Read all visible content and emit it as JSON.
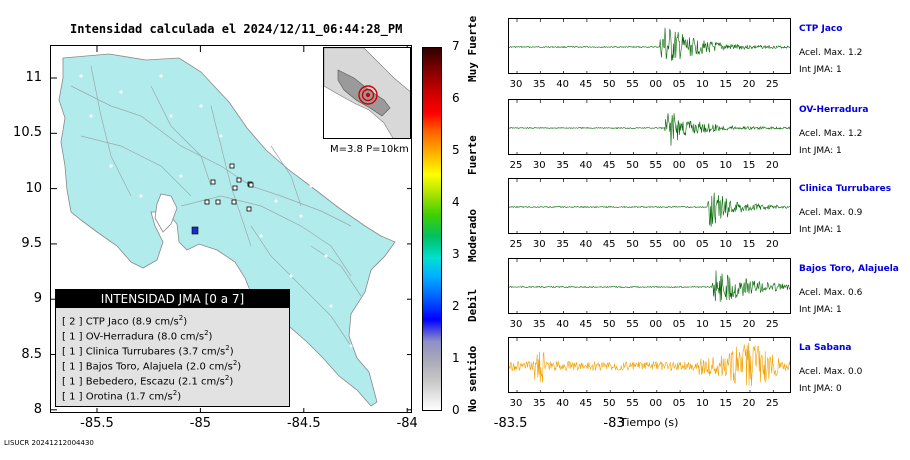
{
  "title": "Intensidad calculada el 2024/12/11_06:44:28_PM",
  "footer": "LISUCR 20241212004430",
  "map": {
    "lat_ticks": [
      "11",
      "10.5",
      "10",
      "9.5",
      "9",
      "8.5",
      "8"
    ],
    "lon_ticks": [
      "-85.5",
      "-85",
      "-84.5",
      "-84",
      "-83.5",
      "-83"
    ],
    "xlim": [
      -86,
      -82.6
    ],
    "ylim": [
      8,
      11.3
    ],
    "land_color": "#b2ebec",
    "inset_caption": "M=3.8 P=10km",
    "station_count": 10
  },
  "legend": {
    "header": "INTENSIDAD JMA [0 a 7]",
    "rows": [
      {
        "level": "[ 2 ]",
        "name": "CTP Jaco",
        "accel": "(8.9 cm/s",
        "sup": "2",
        "close": ")"
      },
      {
        "level": "[ 1 ]",
        "name": "OV-Herradura",
        "accel": "(8.0 cm/s",
        "sup": "2",
        "close": ")"
      },
      {
        "level": "[ 1 ]",
        "name": "Clinica Turrubares",
        "accel": "(3.7 cm/s",
        "sup": "2",
        "close": ")"
      },
      {
        "level": "[ 1 ]",
        "name": "Bajos Toro, Alajuela",
        "accel": "(2.0 cm/s",
        "sup": "2",
        "close": ")"
      },
      {
        "level": "[ 1 ]",
        "name": "Bebedero, Escazu",
        "accel": "(2.1 cm/s",
        "sup": "2",
        "close": ")"
      },
      {
        "level": "[ 1 ]",
        "name": "Orotina",
        "accel": "(1.7 cm/s",
        "sup": "2",
        "close": ")"
      }
    ]
  },
  "colorbar": {
    "ticks": [
      "7",
      "6",
      "5",
      "4",
      "3",
      "2",
      "1",
      "0"
    ],
    "labels": [
      "Muy Fuerte",
      "Fuerte",
      "Moderado",
      "Debil",
      "No sentido"
    ]
  },
  "chart_data": {
    "type": "line",
    "xlabel": "Tiempo (s)",
    "stations": [
      {
        "name": "CTP Jaco",
        "acel_label": "Acel. Max. 1.2",
        "int_label": "Int JMA: 1",
        "color": "#006400",
        "onset": 1,
        "duration": 14,
        "peak": 1.0,
        "ticks": [
          "30",
          "35",
          "40",
          "45",
          "50",
          "55",
          "00",
          "05",
          "10",
          "15",
          "20",
          "25"
        ]
      },
      {
        "name": "OV-Herradura",
        "acel_label": "Acel. Max. 1.2",
        "int_label": "Int JMA: 1",
        "color": "#006400",
        "onset": 2,
        "duration": 12,
        "peak": 0.85,
        "ticks": [
          "25",
          "30",
          "35",
          "40",
          "45",
          "50",
          "55",
          "00",
          "05",
          "10",
          "15",
          "20"
        ]
      },
      {
        "name": "Clinica Turrubares",
        "acel_label": "Acel. Max. 0.9",
        "int_label": "Int JMA: 1",
        "color": "#006400",
        "onset": 11,
        "duration": 10,
        "peak": 0.95,
        "ticks": [
          "25",
          "30",
          "35",
          "40",
          "45",
          "50",
          "55",
          "00",
          "05",
          "10",
          "15",
          "20"
        ]
      },
      {
        "name": "Bajos Toro, Alajuela",
        "acel_label": "Acel. Max. 0.6",
        "int_label": "Int JMA: 1",
        "color": "#006400",
        "onset": 12,
        "duration": 15,
        "peak": 0.9,
        "ticks": [
          "30",
          "35",
          "40",
          "45",
          "50",
          "55",
          "00",
          "05",
          "10",
          "15",
          "20",
          "25"
        ]
      },
      {
        "name": "La Sabana",
        "acel_label": "Acel. Max. 0.0",
        "int_label": "Int JMA: 0",
        "color": "#f2a000",
        "onset": -2,
        "duration": 30,
        "peak": 0.8,
        "ticks": [
          "30",
          "35",
          "40",
          "45",
          "50",
          "55",
          "00",
          "05",
          "10",
          "15",
          "20",
          "25"
        ]
      }
    ]
  }
}
